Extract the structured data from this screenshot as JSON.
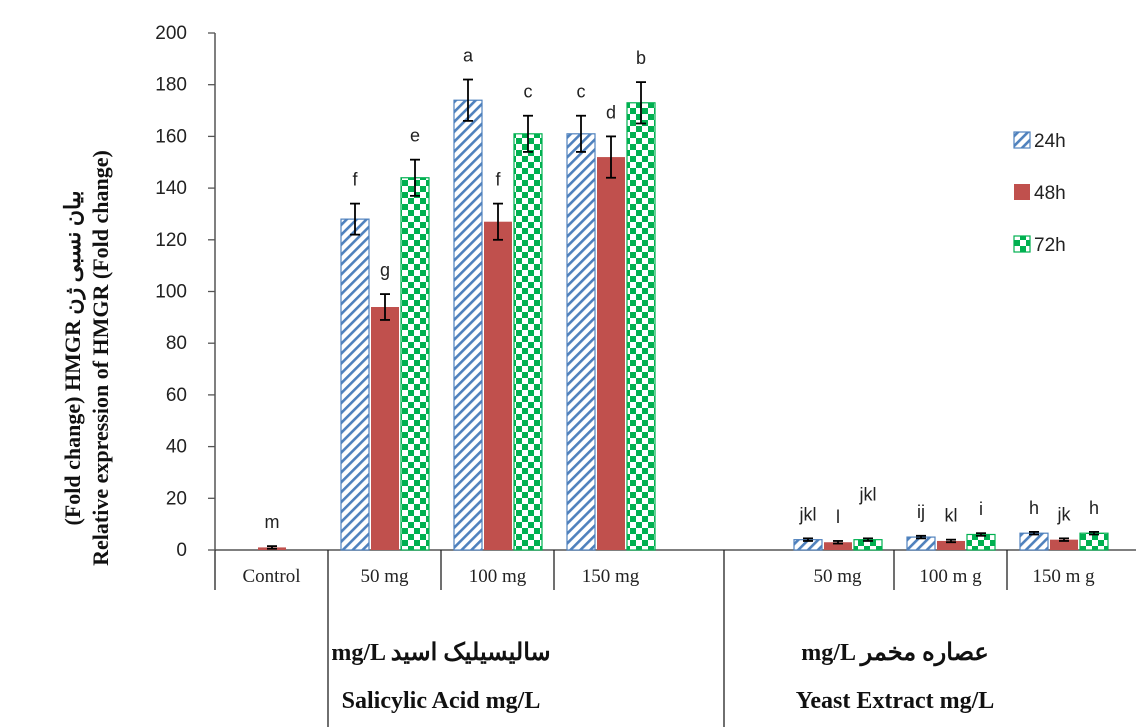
{
  "chart_data": {
    "type": "bar",
    "ylabel_lines": [
      "Relative expression of HMGR (Fold change)",
      "(Fold change) HMGR بیان نسبی ژن"
    ],
    "ylim": [
      0,
      200
    ],
    "yticks": [
      0,
      20,
      40,
      60,
      80,
      100,
      120,
      140,
      160,
      180,
      200
    ],
    "grid": false,
    "legend_position": "right",
    "categories": [
      "Control",
      "50 mg",
      "100 mg",
      "150 mg",
      "50 mg",
      "100 m g",
      "150 m g"
    ],
    "groups": [
      {
        "label_lines": [
          "mg/L سالیسیلیک اسید",
          "Salicylic Acid mg/L"
        ],
        "categories": [
          1,
          2,
          3
        ]
      },
      {
        "label_lines": [
          "mg/L عصاره مخمر",
          "Yeast Extract mg/L"
        ],
        "categories": [
          4,
          5,
          6
        ]
      }
    ],
    "series": [
      {
        "name": "24h",
        "color": "#4f81bd",
        "pattern": "diagonal-hatch",
        "values": [
          null,
          128,
          174,
          161,
          4,
          5,
          6.5
        ],
        "errors": [
          0,
          6,
          8,
          7,
          0.5,
          0.5,
          0.5
        ],
        "sig": [
          "",
          "f",
          "a",
          "c",
          "jkl",
          "ij",
          "h"
        ]
      },
      {
        "name": "48h",
        "color": "#c0504d",
        "pattern": "solid",
        "values": [
          1,
          94,
          127,
          152,
          3,
          3.5,
          4
        ],
        "errors": [
          0.5,
          5,
          7,
          8,
          0.5,
          0.5,
          0.5
        ],
        "sig": [
          "m",
          "g",
          "f",
          "d",
          "l",
          "kl",
          "jk"
        ]
      },
      {
        "name": "72h",
        "color": "#00b050",
        "pattern": "checker",
        "values": [
          null,
          144,
          161,
          173,
          4,
          6,
          6.5
        ],
        "errors": [
          0,
          7,
          7,
          8,
          0.5,
          0.5,
          0.5
        ],
        "sig": [
          "",
          "e",
          "c",
          "b",
          "jkl",
          "i",
          "h"
        ]
      }
    ]
  }
}
